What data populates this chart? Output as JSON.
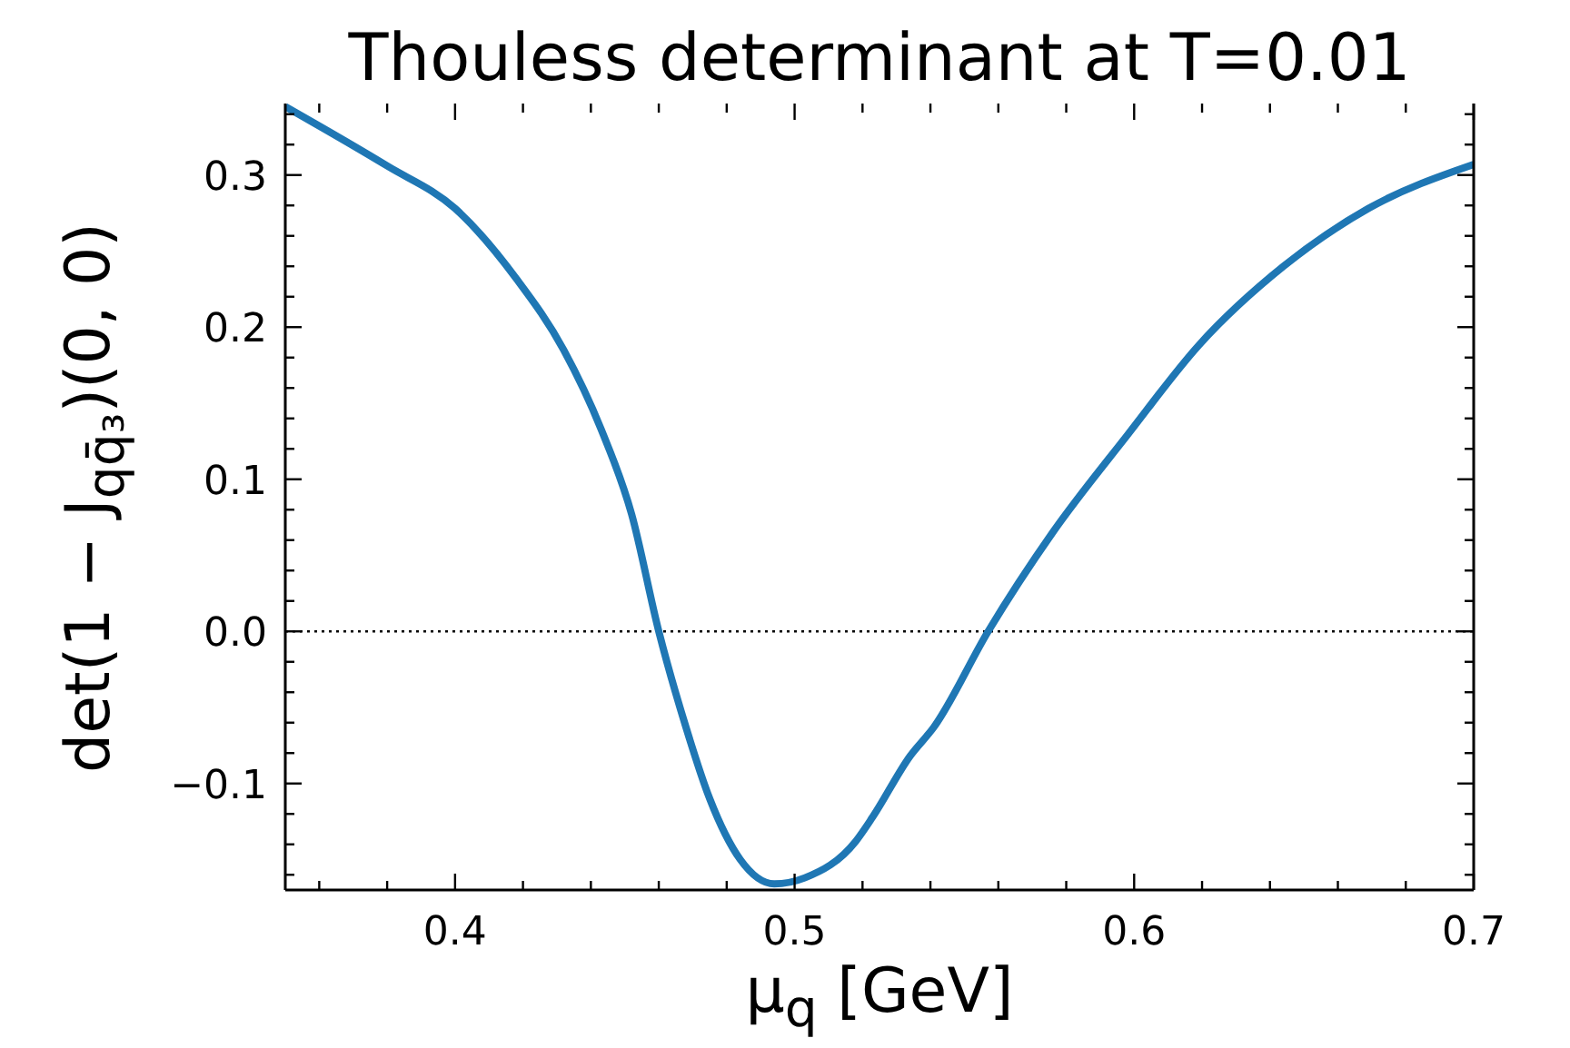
{
  "chart_data": {
    "type": "line",
    "title": "Thouless determinant at T=0.01",
    "xlabel": "μ$_{q}$ [GeV]",
    "ylabel": "det(1 − J$_{qq̄₃}$)(0, 0)",
    "x": [
      0.35,
      0.38,
      0.4,
      0.418,
      0.432,
      0.443,
      0.452,
      0.46,
      0.468,
      0.475,
      0.484,
      0.494,
      0.503,
      0.518,
      0.523,
      0.534,
      0.541,
      0.557,
      0.576,
      0.598,
      0.619,
      0.644,
      0.669,
      0.7
    ],
    "series": [
      {
        "color": "#1f77b4",
        "values": [
          0.345,
          0.306,
          0.278,
          0.232,
          0.185,
          0.133,
          0.077,
          0.0,
          -0.063,
          -0.11,
          -0.15,
          -0.166,
          -0.162,
          -0.138,
          -0.122,
          -0.082,
          -0.063,
          0.0,
          0.065,
          0.129,
          0.188,
          0.24,
          0.278,
          0.307
        ]
      }
    ],
    "line_style": "solid",
    "xlim": [
      0.35,
      0.7
    ],
    "ylim": [
      -0.17,
      0.347
    ],
    "xticks": [
      {
        "value": 0.36,
        "label": null
      },
      {
        "value": 0.38,
        "label": null
      },
      0.4,
      {
        "value": 0.42,
        "label": null
      },
      {
        "value": 0.44,
        "label": null
      },
      {
        "value": 0.46,
        "label": null
      },
      {
        "value": 0.48,
        "label": null
      },
      0.5,
      {
        "value": 0.52,
        "label": null
      },
      {
        "value": 0.54,
        "label": null
      },
      {
        "value": 0.56,
        "label": null
      },
      {
        "value": 0.58,
        "label": null
      },
      0.6,
      {
        "value": 0.62,
        "label": null
      },
      {
        "value": 0.64,
        "label": null
      },
      {
        "value": 0.66,
        "label": null
      },
      {
        "value": 0.68,
        "label": null
      },
      0.7
    ],
    "yticks": [
      {
        "value": -0.16,
        "label": null
      },
      {
        "value": -0.14,
        "label": null
      },
      {
        "value": -0.12,
        "label": null
      },
      {
        "value": -0.1,
        "label": "−0.1"
      },
      {
        "value": -0.08,
        "label": null
      },
      {
        "value": -0.06,
        "label": null
      },
      {
        "value": -0.04,
        "label": null
      },
      {
        "value": -0.02,
        "label": null
      },
      {
        "value": 0,
        "label": "0.0"
      },
      {
        "value": 0.02,
        "label": null
      },
      {
        "value": 0.04,
        "label": null
      },
      {
        "value": 0.06,
        "label": null
      },
      {
        "value": 0.08,
        "label": null
      },
      0.1,
      {
        "value": 0.12,
        "label": null
      },
      {
        "value": 0.14,
        "label": null
      },
      {
        "value": 0.16,
        "label": null
      },
      {
        "value": 0.18,
        "label": null
      },
      0.2,
      {
        "value": 0.22,
        "label": null
      },
      {
        "value": 0.24,
        "label": null
      },
      {
        "value": 0.26,
        "label": null
      },
      {
        "value": 0.28,
        "label": null
      },
      0.3,
      {
        "value": 0.32,
        "label": null
      },
      {
        "value": 0.34,
        "label": null
      }
    ],
    "ref_lines": [
      {
        "axis": "y",
        "value": 0,
        "color": "#000000",
        "line_style": "dotted"
      }
    ]
  }
}
